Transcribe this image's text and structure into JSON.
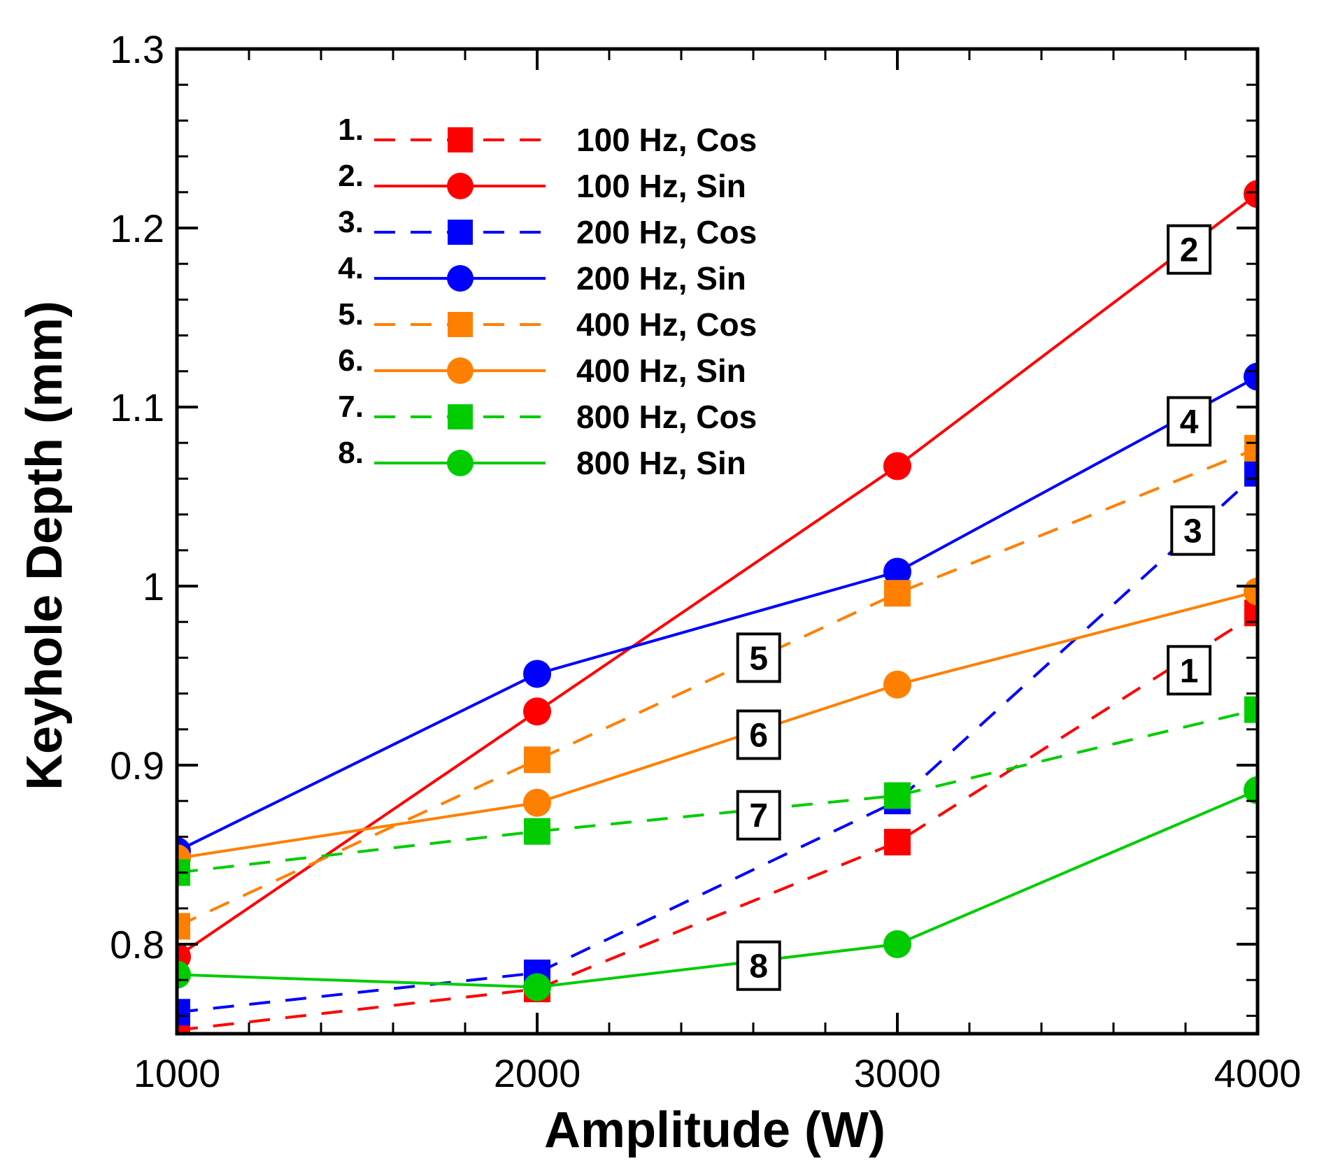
{
  "chart_data": {
    "type": "line",
    "xlabel": "Amplitude (W)",
    "ylabel": "Keyhole Depth (mm)",
    "xlim": [
      1000,
      4000
    ],
    "ylim": [
      0.75,
      1.3
    ],
    "x_ticks": [
      1000,
      2000,
      3000,
      4000
    ],
    "y_ticks": [
      0.8,
      0.9,
      1.0,
      1.1,
      1.2,
      1.3
    ],
    "x_tick_labels": [
      "1000",
      "2000",
      "3000",
      "4000"
    ],
    "y_tick_labels": [
      "0.8",
      "0.9",
      "1",
      "1.1",
      "1.2",
      "1.3"
    ],
    "grid": false,
    "legend_position": "top-left",
    "x": [
      1000,
      2000,
      3000,
      4000
    ],
    "series": [
      {
        "number": "1.",
        "label": "1",
        "name": "100 Hz, Cos",
        "color": "#ff0000",
        "dash": "dashed",
        "marker": "square",
        "values": [
          0.752,
          0.775,
          0.857,
          0.985
        ]
      },
      {
        "number": "2.",
        "label": "2",
        "name": "100 Hz, Sin",
        "color": "#ff0000",
        "dash": "solid",
        "marker": "circle",
        "values": [
          0.793,
          0.93,
          1.067,
          1.219
        ]
      },
      {
        "number": "3.",
        "label": "3",
        "name": "200 Hz, Cos",
        "color": "#0000ff",
        "dash": "dashed",
        "marker": "square",
        "values": [
          0.762,
          0.784,
          0.88,
          1.063
        ]
      },
      {
        "number": "4.",
        "label": "4",
        "name": "200 Hz, Sin",
        "color": "#0000ff",
        "dash": "solid",
        "marker": "circle",
        "values": [
          0.852,
          0.951,
          1.008,
          1.117
        ]
      },
      {
        "number": "5.",
        "label": "5",
        "name": "400 Hz, Cos",
        "color": "#ff8000",
        "dash": "dashed",
        "marker": "square",
        "values": [
          0.81,
          0.903,
          0.996,
          1.077
        ]
      },
      {
        "number": "6.",
        "label": "6",
        "name": "400 Hz, Sin",
        "color": "#ff8000",
        "dash": "solid",
        "marker": "circle",
        "values": [
          0.848,
          0.879,
          0.945,
          0.997
        ]
      },
      {
        "number": "7.",
        "label": "7",
        "name": "800 Hz, Cos",
        "color": "#00cc00",
        "dash": "dashed",
        "marker": "square",
        "values": [
          0.84,
          0.863,
          0.883,
          0.931
        ]
      },
      {
        "number": "8.",
        "label": "8",
        "name": "800 Hz, Sin",
        "color": "#00cc00",
        "dash": "solid",
        "marker": "circle",
        "values": [
          0.783,
          0.776,
          0.8,
          0.886
        ]
      }
    ],
    "annotations": [
      {
        "text": "1",
        "x": 3810,
        "y": 0.953
      },
      {
        "text": "2",
        "x": 3810,
        "y": 1.188
      },
      {
        "text": "3",
        "x": 3820,
        "y": 1.031
      },
      {
        "text": "4",
        "x": 3810,
        "y": 1.092
      },
      {
        "text": "5",
        "x": 2615,
        "y": 0.96
      },
      {
        "text": "6",
        "x": 2615,
        "y": 0.917
      },
      {
        "text": "7",
        "x": 2615,
        "y": 0.872
      },
      {
        "text": "8",
        "x": 2615,
        "y": 0.788
      }
    ]
  }
}
